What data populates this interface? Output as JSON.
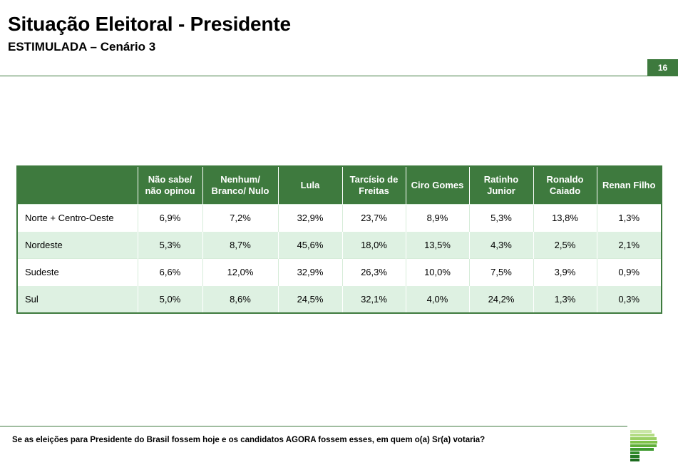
{
  "header": {
    "title": "Situação Eleitoral - Presidente",
    "subtitle": "ESTIMULADA – Cenário 3",
    "page_number": "16"
  },
  "table": {
    "columns": [
      "",
      "Não sabe/ não opinou",
      "Nenhum/ Branco/ Nulo",
      "Lula",
      "Tarcísio de Freitas",
      "Ciro Gomes",
      "Ratinho Junior",
      "Ronaldo Caiado",
      "Renan Filho"
    ],
    "rows": [
      {
        "region": "Norte + Centro-Oeste",
        "values": [
          "6,9%",
          "7,2%",
          "32,9%",
          "23,7%",
          "8,9%",
          "5,3%",
          "13,8%",
          "1,3%"
        ]
      },
      {
        "region": "Nordeste",
        "values": [
          "5,3%",
          "8,7%",
          "45,6%",
          "18,0%",
          "13,5%",
          "4,3%",
          "2,5%",
          "2,1%"
        ]
      },
      {
        "region": "Sudeste",
        "values": [
          "6,6%",
          "12,0%",
          "32,9%",
          "26,3%",
          "10,0%",
          "7,5%",
          "3,9%",
          "0,9%"
        ]
      },
      {
        "region": "Sul",
        "values": [
          "5,0%",
          "8,6%",
          "24,5%",
          "32,1%",
          "4,0%",
          "24,2%",
          "1,3%",
          "0,3%"
        ]
      }
    ]
  },
  "footer": {
    "question": "Se as eleições para Presidente do Brasil fossem hoje e os candidatos AGORA fossem esses, em quem o(a) Sr(a) votaria?",
    "logo_icon": "brand-logo-icon"
  },
  "colors": {
    "accent": "#3e7a3e",
    "row_alt": "#def1e2"
  }
}
